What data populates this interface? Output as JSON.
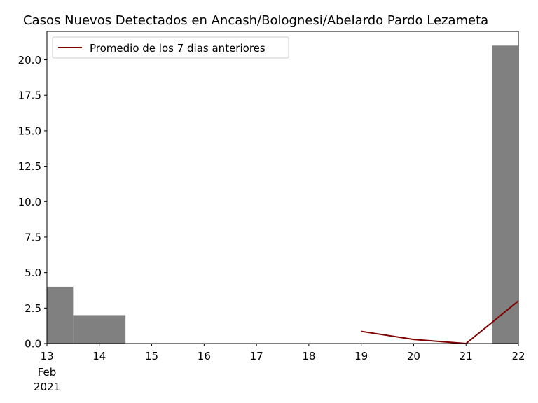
{
  "chart_data": {
    "type": "bar",
    "title": "Casos Nuevos Detectados en Ancash/Bolognesi/Abelardo Pardo Lezameta",
    "xlabel": "",
    "ylabel": "",
    "x_ticks": [
      "13",
      "14",
      "15",
      "16",
      "17",
      "18",
      "19",
      "20",
      "21",
      "22"
    ],
    "x_sublabels": [
      "Feb",
      "2021"
    ],
    "x_dates": [
      "2021-02-13",
      "2021-02-14",
      "2021-02-15",
      "2021-02-16",
      "2021-02-17",
      "2021-02-18",
      "2021-02-19",
      "2021-02-20",
      "2021-02-21",
      "2021-02-22"
    ],
    "xlim": [
      "2021-02-13",
      "2021-02-22"
    ],
    "ylim": [
      0,
      22
    ],
    "y_ticks": [
      "0.0",
      "2.5",
      "5.0",
      "7.5",
      "10.0",
      "12.5",
      "15.0",
      "17.5",
      "20.0"
    ],
    "bars": {
      "color": "#808080",
      "dates": [
        "2021-02-13",
        "2021-02-14",
        "2021-02-15",
        "2021-02-16",
        "2021-02-17",
        "2021-02-18",
        "2021-02-19",
        "2021-02-20",
        "2021-02-21",
        "2021-02-22"
      ],
      "values": [
        4,
        2,
        0,
        0,
        0,
        0,
        0,
        0,
        0,
        21
      ]
    },
    "series": [
      {
        "name": "Promedio de los 7 dias anteriores",
        "type": "line",
        "color": "#800000",
        "dates": [
          "2021-02-19",
          "2021-02-20",
          "2021-02-21",
          "2021-02-22"
        ],
        "values": [
          0.86,
          0.29,
          0.0,
          3.0
        ]
      }
    ],
    "legend_position": "top-left",
    "grid": false
  }
}
